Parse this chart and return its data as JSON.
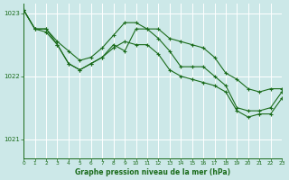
{
  "title": "Graphe pression niveau de la mer (hPa)",
  "bg_color": "#cce8e8",
  "grid_color": "#ffffff",
  "line_color": "#1a6b1a",
  "xlim": [
    0,
    23
  ],
  "ylim": [
    1020.7,
    1023.15
  ],
  "yticks": [
    1021,
    1022,
    1023
  ],
  "xticks": [
    0,
    1,
    2,
    3,
    4,
    5,
    6,
    7,
    8,
    9,
    10,
    11,
    12,
    13,
    14,
    15,
    16,
    17,
    18,
    19,
    20,
    21,
    22,
    23
  ],
  "series1_x": [
    0,
    1,
    2,
    3,
    4,
    5,
    6,
    7,
    8,
    9,
    10,
    11,
    12,
    13,
    14,
    15,
    16,
    17,
    18,
    19,
    20,
    21,
    22,
    23
  ],
  "series1_y": [
    1023.05,
    1022.75,
    1022.75,
    1022.55,
    1022.4,
    1022.25,
    1022.3,
    1022.45,
    1022.65,
    1022.85,
    1022.85,
    1022.75,
    1022.75,
    1022.6,
    1022.55,
    1022.5,
    1022.45,
    1022.3,
    1022.05,
    1021.95,
    1021.8,
    1021.75,
    1021.8,
    1021.8
  ],
  "series2_x": [
    0,
    1,
    2,
    3,
    4,
    5,
    6,
    7,
    8,
    9,
    10,
    11,
    12,
    13,
    14,
    15,
    16,
    17,
    18,
    19,
    20,
    21,
    22,
    23
  ],
  "series2_y": [
    1023.05,
    1022.75,
    1022.75,
    1022.5,
    1022.2,
    1022.1,
    1022.2,
    1022.3,
    1022.5,
    1022.4,
    1022.75,
    1022.75,
    1022.6,
    1022.4,
    1022.15,
    1022.15,
    1022.15,
    1022.0,
    1021.85,
    1021.5,
    1021.45,
    1021.45,
    1021.5,
    1021.75
  ],
  "series3_x": [
    0,
    1,
    2,
    3,
    4,
    5,
    6,
    7,
    8,
    9,
    10,
    11,
    12,
    13,
    14,
    15,
    16,
    17,
    18,
    19,
    20,
    21,
    22,
    23
  ],
  "series3_y": [
    1023.05,
    1022.75,
    1022.7,
    1022.5,
    1022.2,
    1022.1,
    1022.2,
    1022.3,
    1022.45,
    1022.55,
    1022.5,
    1022.5,
    1022.35,
    1022.1,
    1022.0,
    1021.95,
    1021.9,
    1021.85,
    1021.75,
    1021.45,
    1021.35,
    1021.4,
    1021.4,
    1021.65
  ]
}
